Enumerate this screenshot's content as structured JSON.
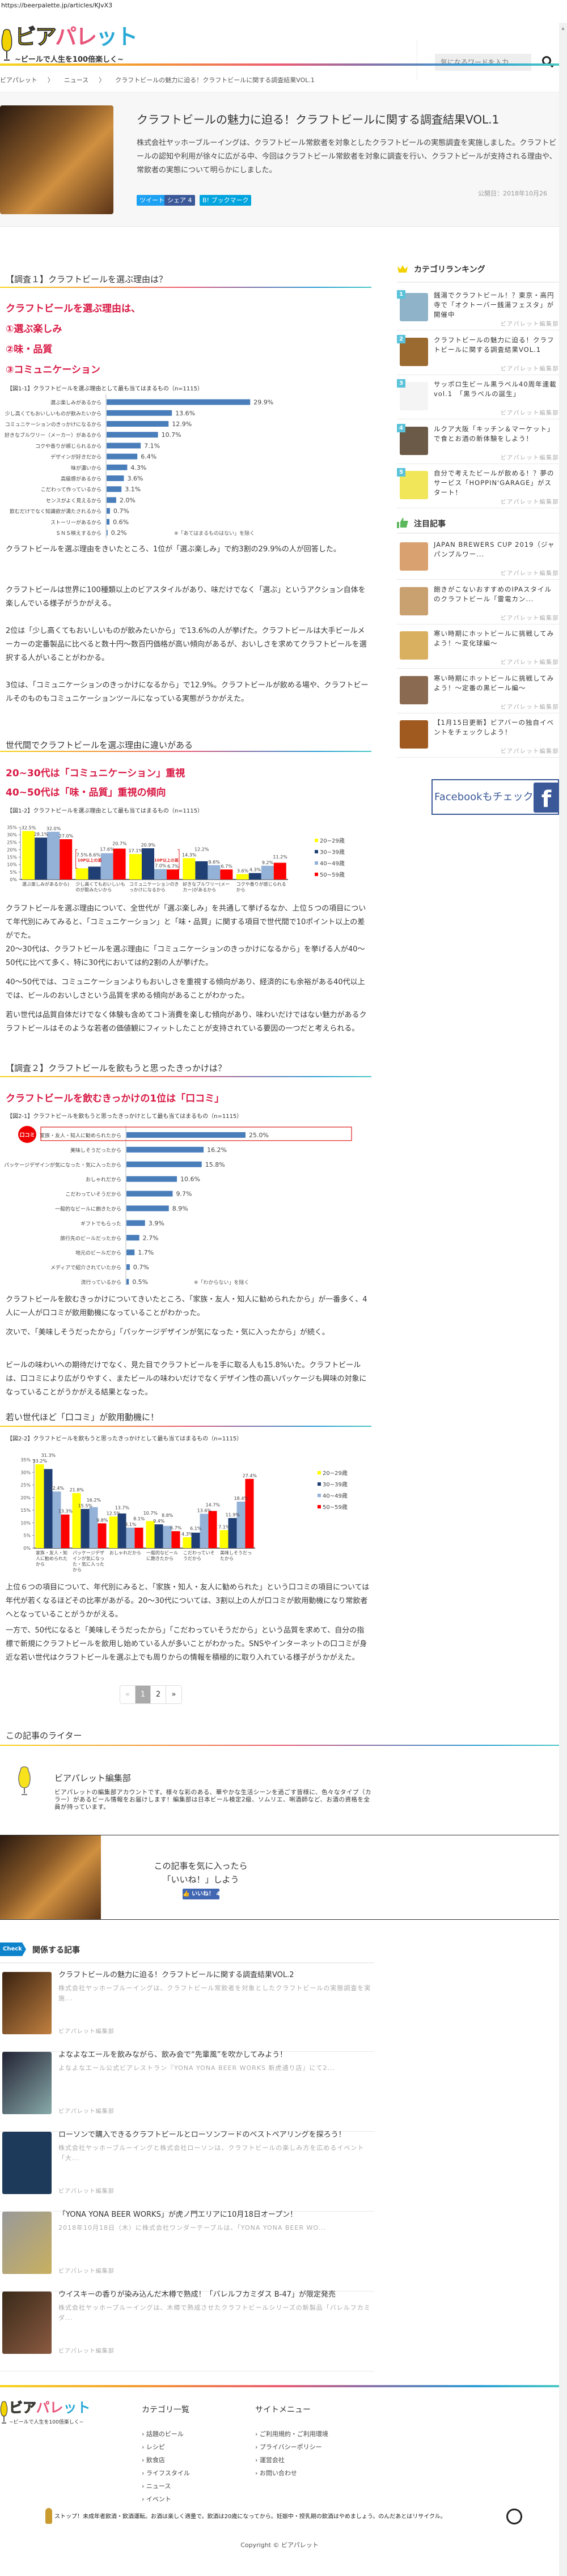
{
  "browser": {
    "url": "https://beerpalette.jp/articles/KJvX3"
  },
  "header": {
    "logo_main": "ビアパレット",
    "logo_sub": "~ビールで人生を100倍楽しく~",
    "search_placeholder": "気になるワードを入力"
  },
  "breadcrumb": [
    "ビアパレット",
    "〉",
    "ニュース",
    "〉",
    "クラフトビールの魅力に迫る！クラフトビールに関する調査結果VOL.1"
  ],
  "article": {
    "title": "クラフトビールの魅力に迫る！クラフトビールに関する調査結果VOL.1",
    "description": "株式会社ヤッホーブルーイングは、クラフトビール常飲者を対象としたクラフトビールの実態調査を実施しました。クラフトビールの認知や利用が徐々に広がる中、今回はクラフトビール常飲者を対象に調査を行い、クラフトビールが支持される理由や、常飲者の実態について明らかにしました。",
    "published": "公開日：2018年10月26",
    "share": {
      "tweet": "ツイート",
      "facebook": "シェア 4",
      "hatena": "B! ブックマーク"
    }
  },
  "survey1": {
    "heading": "【調査１】クラフトビールを選ぶ理由は？",
    "red": [
      "クラフトビールを選ぶ理由は、",
      "①選ぶ楽しみ",
      "②味・品質",
      "③コミュニケーション"
    ],
    "paragraphs": [
      "クラフトビールを選ぶ理由をきいたところ、1位が「選ぶ楽しみ」で約3割の29.9%の人が回答した。",
      "クラフトビールは世界に100種類以上のビアスタイルがあり、味だけでなく「選ぶ」というアクション自体を楽しんでいる様子がうかがえる。",
      "2位は「少し高くてもおいしいものが飲みたいから」で13.6%の人が挙げた。クラフトビールは大手ビールメーカーの定番製品に比べると数十円～数百円価格が高い傾向があるが、おいしさを求めてクラフトビールを選択する人がいることがわかる。",
      "3位は、「コミュニケーションのきっかけになるから」で12.9%。クラフトビールが飲める場や、クラフトビールそのものもコミュニケーションツールになっている実態がうかがえた。"
    ],
    "sub_heading": "世代間でクラフトビールを選ぶ理由に違いがある",
    "red2": [
      "20~30代は「コミュニケーション」重視",
      "40~50代は「味・品質」重視の傾向"
    ],
    "paragraphs2": [
      "クラフトビールを選ぶ理由について、全世代が「選ぶ楽しみ」を共通して挙げるなか、上位５つの項目について年代別にみてみると、「コミュニケーション」と「味・品質」に関する項目で世代間で10ポイント以上の差がでた。",
      "20～30代は、クラフトビールを選ぶ理由に「コミュニケーションのきっかけになるから」を挙げる人が40～50代に比べて多く、特に30代においては約2割の人が挙げた。",
      "40～50代では、コミュニケーションよりもおいしさを重視する傾向があり、経済的にも余裕がある40代以上では、ビールのおいしさという品質を求める傾向があることがわかった。",
      "若い世代は品質自体だけでなく体験も含めてコト消費を楽しむ傾向があり、味わいだけではない魅力があるクラフトビールはそのような若者の価値観にフィットしたことが支持されている要因の一つだと考えられる。"
    ]
  },
  "survey2": {
    "heading": "【調査２】クラフトビールを飲もうと思ったきっかけは？",
    "red": "クラフトビールを飲むきっかけの1位は「口コミ」",
    "paragraphs": [
      "クラフトビールを飲むきっかけについてきいたところ、「家族・友人・知人に勧められたから」が一番多く、4人に一人が口コミが飲用動機になっていることがわかった。",
      "次いで、「美味しそうだったから」「パッケージデザインが気になった・気に入ったから」が続く。",
      "ビールの味わいへの期待だけでなく、見た目でクラフトビールを手に取る人も15.8%いた。クラフトビールは、口コミにより広がりやすく、またビールの味わいだけでなくデザイン性の高いパッケージも興味の対象になっていることがうかがえる結果となった。"
    ],
    "sub_heading": "若い世代ほど「口コミ」が飲用動機に！",
    "paragraphs2": [
      "上位６つの項目について、年代別にみると、「家族・知人・友人に勧められた」という口コミの項目については年代が若くなるほどその比率があがる。20～30代については、3割以上の人が口コミが飲用動機になり常飲者へとなっていることがうかがえる。",
      "一方で、50代になると「美味しそうだったから」「こだわっていそうだから」という品質を求めて、自分の指標で新規にクラフトビールを飲用し始めている人が多いことがわかった。SNSやインターネットの口コミが身近な若い世代はクラフトビールを選ぶ上でも周りからの情報を積極的に取り入れている様子がうかがえた。"
    ]
  },
  "chart_data": [
    {
      "type": "bar",
      "orientation": "horizontal",
      "title": "【図1-1】クラフトビールを選ぶ理由として最も当てはまるもの（n=1115）",
      "note": "※「あてはまるものはない」を除く",
      "categories": [
        "選ぶ楽しみがあるから",
        "少し高くてもおいしいものが飲みたいから",
        "コミュニケーションのきっかけになるから",
        "好きなブルワリー（メーカー）があるから",
        "コクや香りが感じられるから",
        "デザインが好きだから",
        "味が濃いから",
        "高級感があるから",
        "こだわって作っているから",
        "センスがよく見えるから",
        "飲むだけでなく知識欲が満たされるから",
        "ストーリーがあるから",
        "ＳＮＳ映えするから"
      ],
      "values": [
        29.9,
        13.6,
        12.9,
        10.7,
        7.1,
        6.4,
        4.3,
        3.6,
        3.1,
        2.0,
        0.7,
        0.6,
        0.2
      ],
      "unit": "%",
      "color": "#4a7ebb"
    },
    {
      "type": "bar",
      "orientation": "vertical",
      "title": "【図1-2】クラフトビールを選ぶ理由として最も当てはまるもの（n=1115）",
      "categories": [
        "選ぶ楽しみがあるから)",
        "少し高くてもおいしいものが飲みたいから",
        "コミュニケーションのきっかけになるから",
        "好きなブルワリー(メーカー)があるから",
        "コクや香りが感じられるから"
      ],
      "yticks": [
        "0%",
        "5%",
        "10%",
        "15%",
        "20%",
        "25%",
        "30%",
        "35%"
      ],
      "ylim": [
        0,
        35
      ],
      "legend": "right",
      "series": [
        {
          "name": "20~29歳",
          "color": "#ffff00",
          "values": [
            32.5,
            7.5,
            17.1,
            14.3,
            3.6
          ]
        },
        {
          "name": "30~39歳",
          "color": "#1f3f75",
          "values": [
            28.1,
            8.6,
            20.9,
            12.2,
            4.3
          ]
        },
        {
          "name": "40~49歳",
          "color": "#94b2d8",
          "values": [
            32.0,
            17.6,
            7.0,
            9.6,
            9.2
          ]
        },
        {
          "name": "50~59歳",
          "color": "#ff0000",
          "values": [
            27.0,
            20.7,
            6.7,
            6.7,
            11.2
          ]
        }
      ],
      "annotations": [
        "10P以上の差",
        "10P以上の差"
      ]
    },
    {
      "type": "bar",
      "orientation": "horizontal",
      "title": "【図2-1】クラフトビールを飲もうと思ったきっかけとして最も当てはまるもの（n=1115）",
      "note": "※「わからない」を除く",
      "highlight_badge": "口コミ",
      "categories": [
        "家族・友人・知人に勧められたから",
        "美味しそうだったから",
        "パッケージデザインが気になった・気に入ったから",
        "おしゃれだから",
        "こだわっていそうだから",
        "一般的なビールに飽きたから",
        "ギフトでもらった",
        "旅行先のビールだったから",
        "地元のビールだから",
        "メディアで紹介されていたから",
        "流行っているから"
      ],
      "values": [
        25.0,
        16.2,
        15.8,
        10.6,
        9.7,
        8.9,
        3.9,
        2.7,
        1.7,
        0.7,
        0.5
      ],
      "unit": "%",
      "color": "#4a7ebb"
    },
    {
      "type": "bar",
      "orientation": "vertical",
      "title": "【図2-2】クラフトビールを飲もうと思ったきっかけとして最も当てはまるもの（n=1115）",
      "categories": [
        "家族・友人・知人に勧められたから",
        "パッケージデザインが気になった・気に入ったから",
        "おしゃれだから",
        "一般的なビールに飽きたから",
        "こだわっていそうだから",
        "美味しそうだったから"
      ],
      "yticks": [
        "0%",
        "5%",
        "10%",
        "15%",
        "20%",
        "25%",
        "30%",
        "35%"
      ],
      "ylim": [
        0,
        35
      ],
      "legend": "right",
      "series": [
        {
          "name": "20~29歳",
          "color": "#ffff00",
          "values": [
            33.2,
            21.8,
            12.5,
            10.7,
            4.3,
            7.1
          ]
        },
        {
          "name": "30~39歳",
          "color": "#1f3f75",
          "values": [
            31.3,
            15.5,
            13.7,
            9.4,
            6.1,
            11.9
          ]
        },
        {
          "name": "40~49歳",
          "color": "#94b2d8",
          "values": [
            22.4,
            16.2,
            8.1,
            8.8,
            13.6,
            18.4
          ]
        },
        {
          "name": "50~59歳",
          "color": "#ff0000",
          "values": [
            13.3,
            9.8,
            8.1,
            6.7,
            14.7,
            27.4
          ]
        }
      ]
    }
  ],
  "pagination": {
    "prev": "«",
    "pages": [
      "1",
      "2"
    ],
    "current": "1",
    "next": "»"
  },
  "writer": {
    "heading": "この記事のライター",
    "name": "ビアパレット編集部",
    "bio": "ビアパレットの編集部アカウントです。様々な彩のある、華やかな生活シーンを過ごす皆様に、色々なタイプ（カラー）があるビール情報をお届けします！編集部は日本ビール検定2級、ソムリエ、唎酒師など、お酒の資格を全員が持っています。"
  },
  "like_box": {
    "line1": "この記事を気に入ったら",
    "line2": "「いいね！」しよう",
    "button": "いいね！ 4"
  },
  "related": {
    "badge": "Check",
    "heading": "関係する記事",
    "items": [
      {
        "title": "クラフトビールの魅力に迫る！クラフトビールに関する調査結果VOL.2",
        "excerpt": "株式会社ヤッホーブルーイングは、クラフトビール常飲者を対象としたクラフトビールの実態調査を実施...",
        "author": "ビアパレット編集部"
      },
      {
        "title": "よなよなエールを飲みながら、飲み会で“先輩風”を吹かしてみよう！",
        "excerpt": "よなよなエール公式ビアレストラン『YONA YONA BEER WORKS 新虎通り店』にて2...",
        "author": "ビアパレット編集部"
      },
      {
        "title": "ローソンで購入できるクラフトビールとローソンフードのベストペアリングを探ろう！",
        "excerpt": "株式会社ヤッホーブルーイングと株式会社ローソンは、クラフトビールの楽しみ方を広めるイベント「大...",
        "author": "ビアパレット編集部"
      },
      {
        "title": "「YONA YONA BEER WORKS」が虎ノ門エリアに10月18日オープン！",
        "excerpt": "2018年10月18日（木）に株式会社ワンダーテーブルは、「YONA YONA BEER WO...",
        "author": "ビアパレット編集部"
      },
      {
        "title": "ウイスキーの香りが染み込んだ木樽で熟成！「バレルフカミダス B-47」が限定発売",
        "excerpt": "株式会社ヤッホーブルーイングは、木樽で熟成させたクラフトビールシリーズの新製品「バレルフカミダ...",
        "author": "ビアパレット編集部"
      }
    ]
  },
  "sidebar": {
    "ranking_heading": "カテゴリランキング",
    "ranking": [
      {
        "rank": "1",
        "title": "銭湯でクラフトビール！？東京・高円寺で「オクトーバー銭湯フェスタ」が開催中",
        "author": "ビアパレット編集部"
      },
      {
        "rank": "2",
        "title": "クラフトビールの魅力に迫る！クラフトビールに関する調査結果VOL.1",
        "author": "ビアパレット編集部"
      },
      {
        "rank": "3",
        "title": "サッポロ生ビール黒ラベル40周年連載vol.1　「黒ラベルの誕生」",
        "author": "ビアパレット編集部"
      },
      {
        "rank": "4",
        "title": "ルクア大阪「キッチン＆マーケット」で食とお酒の新体験をしよう！",
        "author": "ビアパレット編集部"
      },
      {
        "rank": "5",
        "title": "自分で考えたビールが飲める！？夢のサービス「HOPPIN'GARAGE」がスタート！",
        "author": "ビアパレット編集部"
      }
    ],
    "featured_heading": "注目記事",
    "featured": [
      {
        "title": "JAPAN BREWERS CUP 2019（ジャパンブルワー...",
        "author": "ビアパレット編集部"
      },
      {
        "title": "飽きがこないおすすめのIPAスタイルのクラフトビール「雷電カン...",
        "author": "ビアパレット編集部"
      },
      {
        "title": "寒い時期にホットビールに挑戦してみよう！～変化球編～",
        "author": "ビアパレット編集部"
      },
      {
        "title": "寒い時期にホットビールに挑戦してみよう！～定番の黒ビール編～",
        "author": "ビアパレット編集部"
      },
      {
        "title": "【1月15日更新】ビアバーの独自イベントをチェックしよう！",
        "author": "ビアパレット編集部"
      }
    ],
    "facebook_banner": "Facebookもチェック",
    "facebook_logo": "f"
  },
  "footer": {
    "categories_heading": "カテゴリ一覧",
    "categories": [
      "話題のビール",
      "レシピ",
      "飲食店",
      "ライフスタイル",
      "ニュース",
      "イベント"
    ],
    "menu_heading": "サイトメニュー",
    "menu": [
      "ご利用規約・ご利用環境",
      "プライバシーポリシー",
      "運営会社",
      "お問い合わせ"
    ],
    "warning": "ストップ！未成年者飲酒・飲酒運転。お酒は楽しく適量で。飲酒は20歳になってから。妊娠中・授乳期の飲酒はやめましょう。のんだあとはリサイクル。",
    "copyright": "Copyright © ビアパレット"
  },
  "colors": {
    "accent_red": "#d91a45",
    "bar_blue": "#4a7ebb",
    "rank_badge": "#5bc3d9",
    "facebook": "#3b5998"
  }
}
